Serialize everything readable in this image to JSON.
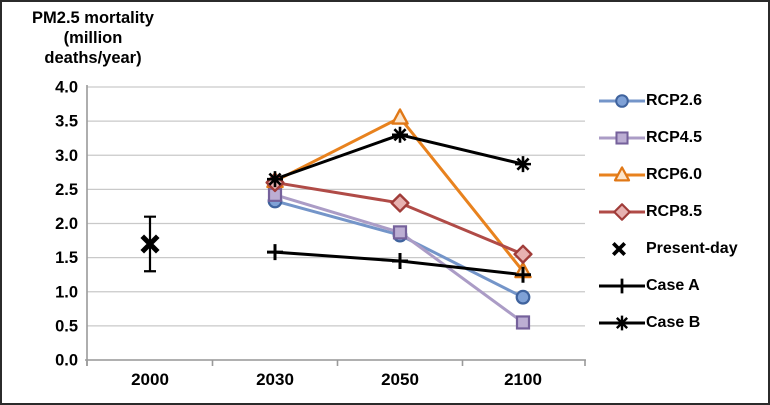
{
  "frame": {
    "background": "#FFFFFF",
    "border_color": "#2B2B2B"
  },
  "chart_data": {
    "type": "line",
    "title": "PM2.5 mortality (million deaths/year)",
    "title_lines": [
      "PM2.5 mortality",
      "(million",
      "deaths/year)"
    ],
    "x_categories": [
      "2000",
      "2030",
      "2050",
      "2100"
    ],
    "y_tick_labels": [
      "4.0",
      "3.5",
      "3.0",
      "2.5",
      "2.0",
      "1.5",
      "1.0",
      "0.5",
      "0.0"
    ],
    "ylim": [
      0,
      4
    ],
    "y_step": 0.5,
    "grid": true,
    "legend_position": "right",
    "colors": {
      "gridline": "#C9C9C9",
      "axis": "#9A9A9A",
      "text": "#000000"
    },
    "series": [
      {
        "name": "RCP2.6",
        "marker": "circle",
        "line": true,
        "color": "#7495C9",
        "marker_fill": "#7FA1D6",
        "marker_stroke": "#3F639E",
        "values": [
          null,
          2.33,
          1.83,
          0.92
        ]
      },
      {
        "name": "RCP4.5",
        "marker": "square",
        "line": true,
        "color": "#AB9CC6",
        "marker_fill": "#BCAED3",
        "marker_stroke": "#75619B",
        "values": [
          null,
          2.42,
          1.87,
          0.55
        ]
      },
      {
        "name": "RCP6.0",
        "marker": "triangle",
        "line": true,
        "color": "#E8821E",
        "marker_fill": "#FCE5CB",
        "marker_stroke": "#E07817",
        "values": [
          null,
          2.62,
          3.55,
          1.3
        ]
      },
      {
        "name": "RCP8.5",
        "marker": "diamond",
        "line": true,
        "color": "#B04B47",
        "marker_fill": "#E7B2B1",
        "marker_stroke": "#A03C39",
        "values": [
          null,
          2.6,
          2.3,
          1.55
        ]
      },
      {
        "name": "Present-day",
        "marker": "x",
        "line": false,
        "color": "#000000",
        "values": [
          1.7,
          null,
          null,
          null
        ],
        "error_bar": {
          "x_index": 0,
          "center": 1.7,
          "low": 1.3,
          "high": 2.1
        }
      },
      {
        "name": "Case A",
        "marker": "plus",
        "line": true,
        "color": "#000000",
        "values": [
          null,
          1.58,
          1.45,
          1.25
        ]
      },
      {
        "name": "Case B",
        "marker": "asterisk",
        "line": true,
        "color": "#000000",
        "values": [
          null,
          2.65,
          3.3,
          2.87
        ]
      }
    ]
  }
}
